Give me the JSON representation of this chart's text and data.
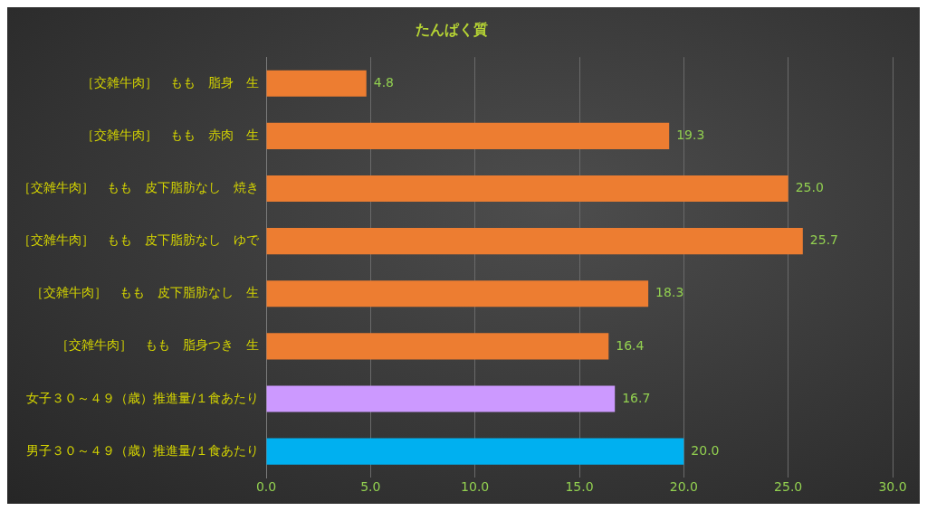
{
  "chart_data": {
    "type": "bar",
    "orientation": "horizontal",
    "title": "たんぱく質",
    "categories": [
      "［交雑牛肉］　もも　脂身　生",
      "［交雑牛肉］　もも　赤肉　生",
      "［交雑牛肉］　もも　皮下脂肪なし　焼き",
      "［交雑牛肉］　もも　皮下脂肪なし　ゆで",
      "［交雑牛肉］　もも　皮下脂肪なし　生",
      "［交雑牛肉］　もも　脂身つき　生",
      "女子３０～４９（歳）推進量/１食あたり",
      "男子３０～４９（歳）推進量/１食あたり"
    ],
    "values": [
      4.8,
      19.3,
      25.0,
      25.7,
      18.3,
      16.4,
      16.7,
      20.0
    ],
    "value_labels": [
      "4.8",
      "19.3",
      "25.0",
      "25.7",
      "18.3",
      "16.4",
      "16.7",
      "20.0"
    ],
    "colors": [
      "#ed7d31",
      "#ed7d31",
      "#ed7d31",
      "#ed7d31",
      "#ed7d31",
      "#ed7d31",
      "#cc99ff",
      "#00b0f0"
    ],
    "xlim": [
      0,
      30
    ],
    "xticks": [
      {
        "value": 0,
        "label": "0.0"
      },
      {
        "value": 5,
        "label": "5.0"
      },
      {
        "value": 10,
        "label": "10.0"
      },
      {
        "value": 15,
        "label": "15.0"
      },
      {
        "value": 20,
        "label": "20.0"
      },
      {
        "value": 25,
        "label": "25.0"
      },
      {
        "value": 30,
        "label": "30.0"
      }
    ],
    "grid": "x",
    "legend": false
  }
}
